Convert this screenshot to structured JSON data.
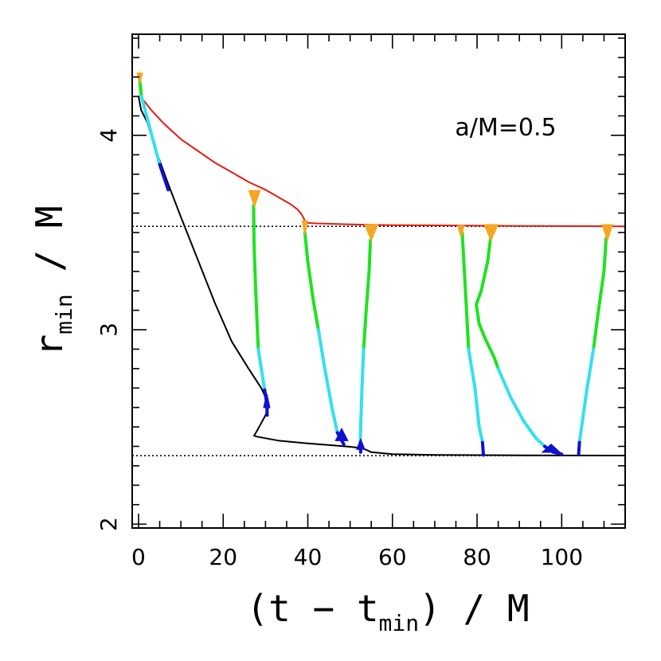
{
  "chart_data": {
    "type": "line",
    "xlabel_parts": [
      "(t − t",
      "min",
      ") / M"
    ],
    "ylabel_parts": [
      "r",
      "min",
      " / M"
    ],
    "annotation": "a/M=0.5",
    "xlim": [
      -1.5,
      115
    ],
    "ylim": [
      1.98,
      4.52
    ],
    "x_ticks": [
      0,
      20,
      40,
      60,
      80,
      100
    ],
    "x_tick_labels": [
      "0",
      "20",
      "40",
      "60",
      "80",
      "100"
    ],
    "y_ticks": [
      2,
      3,
      4
    ],
    "y_tick_labels": [
      "2",
      "3",
      "4"
    ],
    "reference_lines": [
      {
        "name": "photon-orbit",
        "y": 3.532,
        "style": "dotted"
      },
      {
        "name": "marginally-bound-orbit",
        "y": 2.352,
        "style": "dotted"
      }
    ],
    "colors": {
      "red": "#e41b12",
      "black": "#000000",
      "green": "#1fe21f",
      "cyan": "#33e0ee",
      "blue": "#1010d0",
      "orange": "#f5a623"
    },
    "series": [
      {
        "name": "upper-envelope",
        "color": "red",
        "points": [
          [
            0,
            4.31
          ],
          [
            0.5,
            4.2
          ],
          [
            3,
            4.13
          ],
          [
            6,
            4.06
          ],
          [
            10,
            3.98
          ],
          [
            14,
            3.92
          ],
          [
            18,
            3.86
          ],
          [
            22,
            3.81
          ],
          [
            26,
            3.76
          ],
          [
            30,
            3.72
          ],
          [
            34,
            3.67
          ],
          [
            36,
            3.645
          ],
          [
            37.5,
            3.62
          ],
          [
            38.5,
            3.595
          ],
          [
            39,
            3.575
          ],
          [
            39.5,
            3.55
          ],
          [
            42,
            3.547
          ],
          [
            50,
            3.542
          ],
          [
            60,
            3.538
          ],
          [
            80,
            3.535
          ],
          [
            100,
            3.533
          ],
          [
            115,
            3.532
          ]
        ]
      },
      {
        "name": "lower-envelope",
        "color": "black",
        "points": [
          [
            0,
            4.2
          ],
          [
            0.6,
            4.13
          ],
          [
            2,
            4.07
          ],
          [
            4,
            3.93
          ],
          [
            7,
            3.75
          ],
          [
            10,
            3.58
          ],
          [
            14,
            3.36
          ],
          [
            18,
            3.14
          ],
          [
            22,
            2.94
          ],
          [
            26,
            2.8
          ],
          [
            29,
            2.7
          ],
          [
            30.5,
            2.63
          ],
          [
            30.7,
            2.6
          ],
          [
            30,
            2.56
          ],
          [
            29,
            2.52
          ],
          [
            28,
            2.48
          ],
          [
            27.3,
            2.455
          ],
          [
            28,
            2.45
          ],
          [
            33,
            2.43
          ],
          [
            40,
            2.415
          ],
          [
            46,
            2.405
          ],
          [
            50,
            2.398
          ],
          [
            53,
            2.39
          ],
          [
            55,
            2.37
          ],
          [
            60,
            2.36
          ],
          [
            70,
            2.356
          ],
          [
            90,
            2.354
          ],
          [
            115,
            2.353
          ]
        ]
      },
      {
        "name": "branch-0-green",
        "color": "green",
        "points": [
          [
            0.2,
            4.3
          ],
          [
            0.7,
            4.2
          ]
        ]
      },
      {
        "name": "branch-0-cyan",
        "color": "cyan",
        "points": [
          [
            0.7,
            4.2
          ],
          [
            2.5,
            4.05
          ],
          [
            5,
            3.85
          ]
        ]
      },
      {
        "name": "branch-0-blue",
        "color": "blue",
        "points": [
          [
            5,
            3.85
          ],
          [
            7,
            3.72
          ]
        ]
      },
      {
        "name": "branch-27-green",
        "color": "green",
        "points": [
          [
            27.2,
            3.64
          ],
          [
            27.3,
            3.45
          ],
          [
            27.6,
            3.25
          ],
          [
            28,
            3.05
          ],
          [
            28.3,
            2.9
          ]
        ]
      },
      {
        "name": "branch-27-cyan",
        "color": "cyan",
        "points": [
          [
            28.3,
            2.9
          ],
          [
            29,
            2.8
          ],
          [
            29.8,
            2.69
          ]
        ]
      },
      {
        "name": "branch-27-blue",
        "color": "blue",
        "points": [
          [
            29.8,
            2.69
          ],
          [
            30.3,
            2.62
          ],
          [
            30.4,
            2.56
          ]
        ]
      },
      {
        "name": "branch-39-green",
        "color": "green",
        "points": [
          [
            39.3,
            3.5
          ],
          [
            40,
            3.35
          ],
          [
            41.3,
            3.15
          ],
          [
            42.5,
            3.0
          ]
        ]
      },
      {
        "name": "branch-39-cyan",
        "color": "cyan",
        "points": [
          [
            42.5,
            3.0
          ],
          [
            44,
            2.8
          ],
          [
            45.7,
            2.6
          ],
          [
            47,
            2.47
          ]
        ]
      },
      {
        "name": "branch-39-blue",
        "color": "blue",
        "points": [
          [
            47,
            2.47
          ],
          [
            48.5,
            2.41
          ]
        ]
      },
      {
        "name": "branch-54-green",
        "color": "green",
        "points": [
          [
            54.8,
            3.46
          ],
          [
            54.5,
            3.3
          ],
          [
            53.8,
            3.1
          ],
          [
            53.2,
            2.9
          ]
        ]
      },
      {
        "name": "branch-54-cyan",
        "color": "cyan",
        "points": [
          [
            53.2,
            2.9
          ],
          [
            52.8,
            2.7
          ],
          [
            52.5,
            2.5
          ],
          [
            52.4,
            2.42
          ]
        ]
      },
      {
        "name": "branch-54-blue",
        "color": "blue",
        "points": [
          [
            52.4,
            2.42
          ],
          [
            52.5,
            2.37
          ]
        ]
      },
      {
        "name": "branch-76-green",
        "color": "green",
        "points": [
          [
            76.5,
            3.5
          ],
          [
            77,
            3.3
          ],
          [
            77.5,
            3.1
          ],
          [
            78,
            2.9
          ]
        ]
      },
      {
        "name": "branch-76-cyan",
        "color": "cyan",
        "points": [
          [
            78,
            2.9
          ],
          [
            79.5,
            2.7
          ],
          [
            80.5,
            2.5
          ],
          [
            81.3,
            2.42
          ]
        ]
      },
      {
        "name": "branch-76-blue",
        "color": "blue",
        "points": [
          [
            81.3,
            2.42
          ],
          [
            81.5,
            2.355
          ]
        ]
      },
      {
        "name": "branch-82-green",
        "color": "green",
        "points": [
          [
            83.2,
            3.47
          ],
          [
            82.5,
            3.35
          ],
          [
            81,
            3.2
          ],
          [
            79.8,
            3.13
          ],
          [
            80.5,
            3.03
          ],
          [
            82,
            2.95
          ],
          [
            84,
            2.86
          ],
          [
            85,
            2.8
          ]
        ]
      },
      {
        "name": "branch-82-cyan",
        "color": "cyan",
        "points": [
          [
            85,
            2.8
          ],
          [
            88,
            2.65
          ],
          [
            91,
            2.53
          ],
          [
            94,
            2.44
          ],
          [
            96,
            2.4
          ]
        ]
      },
      {
        "name": "branch-82-blue",
        "color": "blue",
        "points": [
          [
            96,
            2.4
          ],
          [
            98,
            2.37
          ],
          [
            100,
            2.36
          ]
        ]
      },
      {
        "name": "branch-111-green",
        "color": "green",
        "points": [
          [
            110.5,
            3.47
          ],
          [
            110,
            3.3
          ],
          [
            108.7,
            3.1
          ],
          [
            107.5,
            2.9
          ]
        ]
      },
      {
        "name": "branch-111-cyan",
        "color": "cyan",
        "points": [
          [
            107.5,
            2.9
          ],
          [
            106,
            2.7
          ],
          [
            104.7,
            2.5
          ],
          [
            104.2,
            2.42
          ]
        ]
      },
      {
        "name": "branch-111-blue",
        "color": "blue",
        "points": [
          [
            104.2,
            2.42
          ],
          [
            104,
            2.36
          ]
        ]
      }
    ],
    "orange_blobs": [
      {
        "x": 0.3,
        "y": 4.32,
        "half_width": 0.6,
        "height": 0.05
      },
      {
        "x": 27.4,
        "y": 3.715,
        "half_width": 1.3,
        "height": 0.08
      },
      {
        "x": 39.3,
        "y": 3.56,
        "half_width": 0.6,
        "height": 0.07
      },
      {
        "x": 55,
        "y": 3.54,
        "half_width": 1.5,
        "height": 0.08
      },
      {
        "x": 76.2,
        "y": 3.535,
        "half_width": 0.7,
        "height": 0.06
      },
      {
        "x": 83.3,
        "y": 3.54,
        "half_width": 1.6,
        "height": 0.08
      },
      {
        "x": 110.8,
        "y": 3.54,
        "half_width": 1.2,
        "height": 0.08
      }
    ],
    "blue_blobs": [
      {
        "x": 30.3,
        "y": 2.6,
        "half_width": 0.7,
        "height": 0.07
      },
      {
        "x": 48,
        "y": 2.43,
        "half_width": 1.4,
        "height": 0.06
      },
      {
        "x": 52.5,
        "y": 2.385,
        "half_width": 0.9,
        "height": 0.05
      },
      {
        "x": 97.5,
        "y": 2.37,
        "half_width": 2.0,
        "height": 0.04
      }
    ]
  }
}
